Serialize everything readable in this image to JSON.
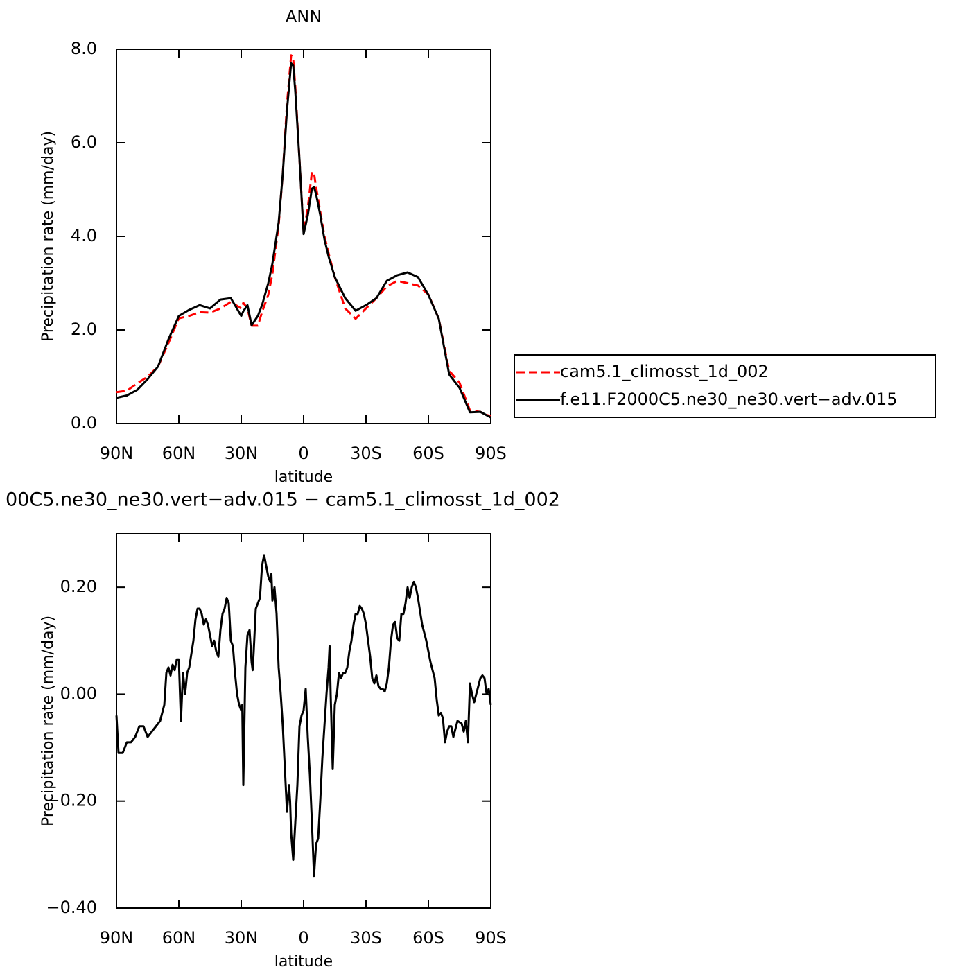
{
  "chart_data": [
    {
      "type": "line",
      "title": "ANN",
      "x_label": "latitude",
      "y_label": "Precipitation rate (mm/day)",
      "x": [
        90,
        85,
        80,
        75,
        70,
        65,
        60,
        55,
        50,
        45,
        40,
        35,
        30,
        29,
        27,
        25,
        22,
        20,
        17,
        15,
        12,
        10,
        8,
        6,
        5,
        4,
        2,
        0,
        -2,
        -4,
        -5,
        -6,
        -8,
        -10,
        -12,
        -15,
        -20,
        -25,
        -30,
        -35,
        -40,
        -45,
        -50,
        -55,
        -60,
        -65,
        -70,
        -75,
        -80,
        -85,
        -90
      ],
      "series": [
        {
          "name": "cam5.1_climosst_1d_002",
          "color": "#ff0000",
          "line_style": "dashed",
          "values": [
            0.67,
            0.7,
            0.86,
            1.0,
            1.22,
            1.72,
            2.25,
            2.3,
            2.38,
            2.37,
            2.46,
            2.6,
            2.46,
            2.58,
            2.46,
            2.09,
            2.09,
            2.38,
            2.75,
            3.2,
            4.24,
            5.35,
            6.83,
            7.87,
            7.8,
            7.2,
            5.65,
            4.09,
            4.6,
            5.38,
            5.35,
            5.05,
            4.53,
            4.01,
            3.64,
            3.13,
            2.46,
            2.24,
            2.46,
            2.68,
            2.93,
            3.05,
            3.0,
            2.95,
            2.76,
            2.24,
            1.13,
            0.87,
            0.28,
            0.25,
            0.15
          ]
        },
        {
          "name": "f.e11.F2000C5.ne30_ne30.vert−adv.015",
          "color": "#000000",
          "line_style": "solid",
          "values": [
            0.55,
            0.6,
            0.72,
            0.95,
            1.22,
            1.8,
            2.3,
            2.43,
            2.53,
            2.46,
            2.65,
            2.68,
            2.3,
            2.4,
            2.53,
            2.1,
            2.3,
            2.53,
            3.0,
            3.42,
            4.3,
            5.35,
            6.7,
            7.7,
            7.65,
            7.1,
            5.65,
            4.05,
            4.45,
            5.02,
            5.05,
            4.9,
            4.46,
            3.94,
            3.57,
            3.13,
            2.68,
            2.41,
            2.53,
            2.68,
            3.05,
            3.17,
            3.23,
            3.13,
            2.75,
            2.24,
            1.05,
            0.76,
            0.24,
            0.25,
            0.13
          ]
        }
      ],
      "xlim": [
        90,
        -90
      ],
      "xticks": [
        {
          "value": 90,
          "label": "90N"
        },
        {
          "value": 60,
          "label": "60N"
        },
        {
          "value": 30,
          "label": "30N"
        },
        0,
        {
          "value": -30,
          "label": "30S"
        },
        {
          "value": -60,
          "label": "60S"
        },
        {
          "value": -90,
          "label": "90S"
        }
      ],
      "ylim": [
        0,
        8
      ],
      "yticks": [
        {
          "value": 0,
          "label": "0.0"
        },
        {
          "value": 2,
          "label": "2.0"
        },
        {
          "value": 4,
          "label": "4.0"
        },
        {
          "value": 6,
          "label": "6.0"
        },
        {
          "value": 8,
          "label": "8.0"
        }
      ],
      "legend": "outside-right"
    },
    {
      "type": "line",
      "title": "00C5.ne30_ne30.vert−adv.015 − cam5.1_climosst_1d_002",
      "x_label": "latitude",
      "y_label": "Precipitation rate (mm/day)",
      "x": [
        90,
        89,
        87,
        85,
        83,
        81,
        79,
        77,
        75,
        73,
        71,
        69,
        67,
        66,
        65,
        64,
        63,
        62,
        61,
        60,
        59,
        58,
        57,
        56,
        55,
        53,
        52,
        51,
        50,
        49,
        48,
        47,
        46,
        45,
        44,
        43,
        42,
        41,
        40,
        39,
        38,
        37,
        36,
        35,
        34,
        33,
        32,
        31,
        30,
        29.5,
        29,
        28,
        27,
        26,
        25,
        24.5,
        24,
        23,
        22,
        21,
        20,
        19,
        18,
        17,
        16,
        15.5,
        15,
        14,
        13,
        12,
        11,
        10,
        9,
        8,
        7,
        6.5,
        6,
        5,
        4,
        3,
        2,
        1,
        0,
        -1,
        -2,
        -3,
        -4,
        -5,
        -6,
        -7,
        -8,
        -9,
        -10,
        -11,
        -12,
        -12.5,
        -13,
        -14,
        -15,
        -16,
        -17,
        -18,
        -19,
        -20,
        -21,
        -22,
        -23,
        -24,
        -25,
        -26,
        -27,
        -28,
        -29,
        -30,
        -31,
        -32,
        -33,
        -34,
        -35,
        -36,
        -37,
        -38,
        -39,
        -40,
        -41,
        -42,
        -43,
        -44,
        -45,
        -46,
        -47,
        -48,
        -49,
        -50,
        -51,
        -52,
        -53,
        -54,
        -55,
        -57,
        -59,
        -61,
        -63,
        -64,
        -65,
        -66,
        -67,
        -68,
        -69,
        -70,
        -71,
        -72,
        -73,
        -74,
        -76,
        -77,
        -78,
        -79,
        -80,
        -81,
        -82,
        -84,
        -85,
        -86,
        -87,
        -88,
        -89,
        -90
      ],
      "values": [
        -0.04,
        -0.11,
        -0.11,
        -0.09,
        -0.09,
        -0.08,
        -0.06,
        -0.06,
        -0.08,
        -0.07,
        -0.06,
        -0.05,
        -0.02,
        0.04,
        0.05,
        0.035,
        0.055,
        0.045,
        0.065,
        0.065,
        -0.05,
        0.04,
        0.0,
        0.04,
        0.05,
        0.1,
        0.14,
        0.16,
        0.16,
        0.15,
        0.13,
        0.14,
        0.13,
        0.11,
        0.09,
        0.1,
        0.08,
        0.07,
        0.12,
        0.15,
        0.16,
        0.18,
        0.17,
        0.1,
        0.09,
        0.04,
        0.0,
        -0.02,
        -0.03,
        -0.02,
        -0.17,
        0.05,
        0.11,
        0.12,
        0.06,
        0.045,
        0.08,
        0.16,
        0.17,
        0.18,
        0.24,
        0.26,
        0.24,
        0.22,
        0.21,
        0.225,
        0.175,
        0.2,
        0.15,
        0.05,
        0.0,
        -0.06,
        -0.14,
        -0.22,
        -0.17,
        -0.2,
        -0.26,
        -0.31,
        -0.24,
        -0.17,
        -0.06,
        -0.04,
        -0.03,
        0.01,
        -0.08,
        -0.15,
        -0.24,
        -0.34,
        -0.28,
        -0.27,
        -0.2,
        -0.12,
        -0.06,
        0.0,
        0.05,
        0.09,
        0.0,
        -0.14,
        -0.02,
        0.0,
        0.04,
        0.03,
        0.04,
        0.04,
        0.05,
        0.08,
        0.1,
        0.13,
        0.15,
        0.15,
        0.165,
        0.16,
        0.15,
        0.13,
        0.1,
        0.07,
        0.03,
        0.02,
        0.035,
        0.015,
        0.01,
        0.01,
        0.005,
        0.02,
        0.05,
        0.1,
        0.13,
        0.135,
        0.105,
        0.1,
        0.15,
        0.15,
        0.17,
        0.2,
        0.18,
        0.2,
        0.21,
        0.2,
        0.18,
        0.13,
        0.1,
        0.06,
        0.03,
        -0.01,
        -0.04,
        -0.035,
        -0.045,
        -0.09,
        -0.07,
        -0.06,
        -0.06,
        -0.08,
        -0.065,
        -0.05,
        -0.055,
        -0.07,
        -0.05,
        -0.09,
        0.02,
        0.0,
        -0.015,
        0.015,
        0.03,
        0.035,
        0.03,
        0.0,
        0.01,
        -0.02
      ],
      "color": "#000000",
      "xlim": [
        90,
        -90
      ],
      "xticks": [
        {
          "value": 90,
          "label": "90N"
        },
        {
          "value": 60,
          "label": "60N"
        },
        {
          "value": 30,
          "label": "30N"
        },
        0,
        {
          "value": -30,
          "label": "30S"
        },
        {
          "value": -60,
          "label": "60S"
        },
        {
          "value": -90,
          "label": "90S"
        }
      ],
      "ylim": [
        -0.4,
        0.3
      ],
      "yticks": [
        {
          "value": -0.4,
          "label": "−0.40"
        },
        {
          "value": -0.2,
          "label": "−0.20"
        },
        {
          "value": 0,
          "label": "0.00"
        },
        {
          "value": 0.2,
          "label": "0.20"
        }
      ]
    }
  ]
}
